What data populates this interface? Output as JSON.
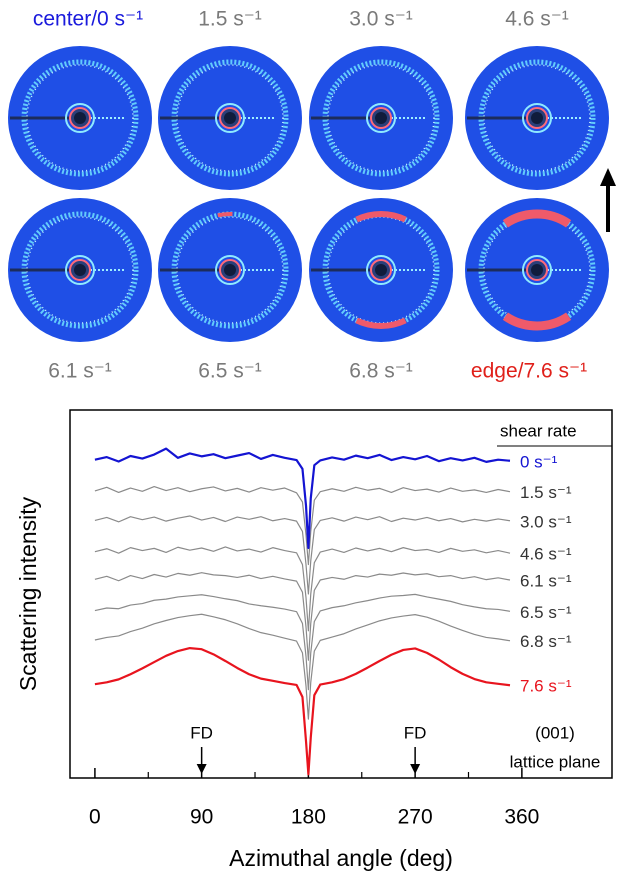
{
  "panels": [
    {
      "label": "center/0 s⁻¹"
    },
    {
      "label": "1.5 s⁻¹"
    },
    {
      "label": "3.0 s⁻¹"
    },
    {
      "label": "4.6 s⁻¹"
    },
    {
      "label": "6.1 s⁻¹"
    },
    {
      "label": "6.5 s⁻¹"
    },
    {
      "label": "6.8 s⁻¹"
    },
    {
      "label": "edge/7.6 s⁻¹"
    }
  ],
  "chart_data": {
    "type": "line",
    "xlabel": "Azimuthal angle (deg)",
    "ylabel": "Scattering intensity",
    "legend_title": "shear rate",
    "annotations": [
      "FD",
      "FD",
      "(001)",
      "lattice plane"
    ],
    "xlim": [
      -21,
      436
    ],
    "ylim": [
      0,
      100
    ],
    "xticks": [
      0,
      90,
      180,
      270,
      360
    ],
    "xminor_ticks": [
      45,
      135,
      225,
      315
    ],
    "x": [
      0,
      10,
      20,
      30,
      40,
      50,
      60,
      70,
      80,
      90,
      100,
      110,
      120,
      130,
      140,
      150,
      160,
      170,
      175,
      178,
      180,
      182,
      185,
      190,
      200,
      210,
      220,
      230,
      240,
      250,
      260,
      270,
      280,
      290,
      300,
      310,
      320,
      330,
      340,
      350
    ],
    "series": [
      {
        "name": "0 s⁻¹",
        "color": "#1414d2",
        "values": [
          86.5,
          87.2,
          86,
          87.5,
          86.8,
          87.9,
          89.5,
          87,
          88.2,
          87.4,
          88,
          86.9,
          87.6,
          88.3,
          86.7,
          87.8,
          87,
          86.4,
          84,
          74,
          62.5,
          76,
          85,
          86.3,
          87.1,
          86.5,
          87.6,
          86.9,
          87.8,
          86.4,
          87.2,
          86.6,
          87.5,
          86.1,
          86.9,
          86.3,
          87,
          85.9,
          86.5,
          86.2
        ]
      },
      {
        "name": "1.5 s⁻¹",
        "color": "#8a8a8a",
        "values": [
          78,
          79,
          77.6,
          78.8,
          77.9,
          79.2,
          78.1,
          78.9,
          77.8,
          78.6,
          79.1,
          78,
          78.7,
          77.7,
          78.9,
          78.2,
          78.8,
          77.5,
          75,
          66,
          58,
          67,
          75.5,
          77.8,
          78.6,
          77.9,
          79,
          78.2,
          78.7,
          77.6,
          78.9,
          78.1,
          78.5,
          77.7,
          78.8,
          77.9,
          78.3,
          77.6,
          78.4,
          77.8
        ]
      },
      {
        "name": "3.0 s⁻¹",
        "color": "#8a8a8a",
        "values": [
          70,
          70.8,
          69.6,
          71,
          70.2,
          70.9,
          69.8,
          70.6,
          71.2,
          70.1,
          70.8,
          69.7,
          70.9,
          70.3,
          71,
          69.9,
          70.5,
          69.8,
          67,
          58,
          50,
          59,
          67.5,
          70,
          70.7,
          69.8,
          70.9,
          70.2,
          71,
          69.7,
          70.6,
          70.1,
          70.8,
          69.9,
          70.5,
          69.6,
          70.3,
          69.8,
          70.4,
          69.9
        ]
      },
      {
        "name": "4.6 s⁻¹",
        "color": "#8a8a8a",
        "values": [
          61.5,
          62.3,
          61.1,
          62.6,
          61.8,
          62.4,
          61.3,
          62.7,
          61.9,
          62.5,
          61.6,
          62.8,
          61.7,
          62.2,
          61.4,
          62.6,
          61.8,
          61.2,
          58,
          49,
          40,
          50,
          58.5,
          61.4,
          62.2,
          61.3,
          62.5,
          61.7,
          62.4,
          61.5,
          62.6,
          61.8,
          62.1,
          61.3,
          62.4,
          61.6,
          62,
          61.2,
          61.8,
          61.1
        ]
      },
      {
        "name": "6.1 s⁻¹",
        "color": "#8a8a8a",
        "values": [
          54,
          54.8,
          53.6,
          55,
          54.2,
          55.3,
          54.6,
          55.6,
          55.1,
          55.8,
          55.2,
          55,
          54.5,
          55.1,
          54.2,
          54.8,
          54.1,
          53.5,
          50.5,
          41,
          32,
          42,
          51,
          53.8,
          54.5,
          54,
          55,
          54.6,
          55.4,
          55.1,
          55.7,
          55.2,
          55.5,
          54.7,
          55,
          54.2,
          54.7,
          53.9,
          54.4,
          53.8
        ]
      },
      {
        "name": "6.5 s⁻¹",
        "color": "#8a8a8a",
        "values": [
          45.5,
          46.2,
          46,
          47,
          47.4,
          48.3,
          48.6,
          49.2,
          49.5,
          49.8,
          49.3,
          48.7,
          48.2,
          47.3,
          46.8,
          46.4,
          45.9,
          45.2,
          42,
          33,
          24,
          34,
          42.5,
          45.4,
          46.3,
          46.8,
          47.6,
          48.2,
          48.9,
          49.4,
          49.6,
          49.9,
          49.2,
          48.6,
          48,
          47.1,
          46.5,
          46,
          45.8,
          45.3
        ]
      },
      {
        "name": "6.8 s⁻¹",
        "color": "#8a8a8a",
        "values": [
          37.5,
          38.2,
          38.6,
          39.8,
          40.7,
          41.9,
          42.8,
          43.6,
          44.1,
          44.5,
          43.8,
          43,
          41.9,
          40.6,
          39.5,
          38.8,
          38,
          37.2,
          34,
          25,
          16,
          26,
          34.5,
          37.4,
          38.3,
          39.2,
          40.5,
          41.6,
          42.7,
          43.5,
          44,
          44.4,
          43.7,
          42.6,
          41.3,
          40.1,
          39,
          38.2,
          37.8,
          37.3
        ]
      },
      {
        "name": "7.6 s⁻¹",
        "color": "#e8141e",
        "values": [
          25.5,
          26,
          26.8,
          28.2,
          29.8,
          31.5,
          33.2,
          34.5,
          35.3,
          35,
          33.6,
          31.8,
          29.9,
          28.2,
          27,
          26.4,
          25.8,
          25.3,
          22,
          10,
          1,
          11,
          22.5,
          25.4,
          26,
          26.9,
          28.3,
          30,
          31.8,
          33.5,
          34.8,
          35.2,
          34,
          32.2,
          30.1,
          28.3,
          26.9,
          26,
          25.6,
          25.2
        ]
      }
    ]
  }
}
